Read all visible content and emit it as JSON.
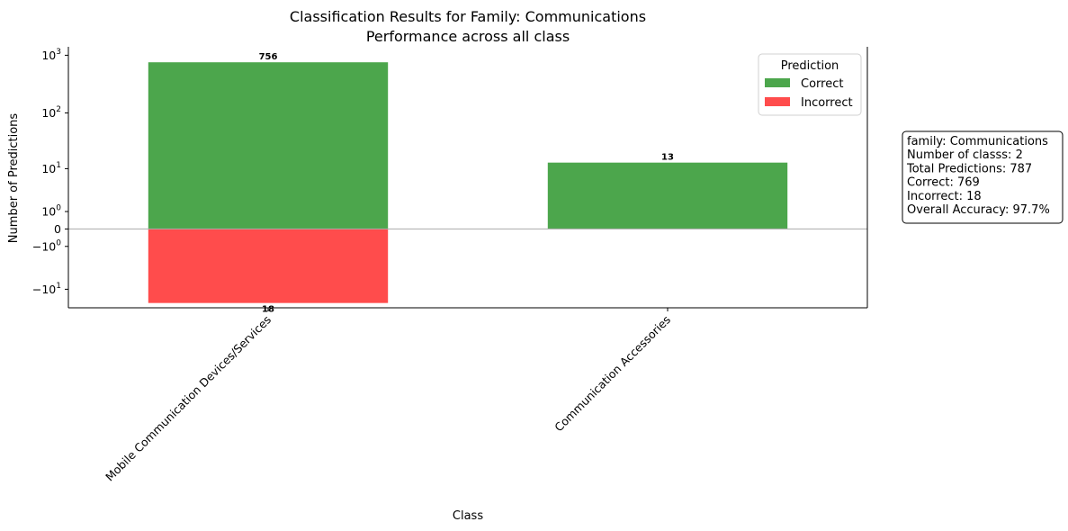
{
  "chart_data": {
    "type": "bar",
    "title": "Classification Results for Family: Communications",
    "subtitle": "Performance across all class",
    "xlabel": "Class",
    "ylabel": "Number of Predictions",
    "yscale": "symlog",
    "categories": [
      "Mobile Communication Devices/Services",
      "Communication Accessories"
    ],
    "series": [
      {
        "name": "Correct",
        "color": "#4ca64c",
        "values": [
          756,
          13
        ]
      },
      {
        "name": "Incorrect",
        "color": "#ff4c4c",
        "values": [
          -18,
          0
        ]
      }
    ],
    "bar_labels": {
      "correct": [
        "756",
        "13"
      ],
      "incorrect": [
        "18",
        ""
      ]
    },
    "yticks": [
      {
        "value": 1000,
        "base": "10",
        "exp": "3"
      },
      {
        "value": 100,
        "base": "10",
        "exp": "2"
      },
      {
        "value": 10,
        "base": "10",
        "exp": "1"
      },
      {
        "value": 1,
        "base": "10",
        "exp": "0"
      },
      {
        "value": 0,
        "base": "0",
        "exp": ""
      },
      {
        "value": -1,
        "base": "−10",
        "exp": "0"
      },
      {
        "value": -10,
        "base": "−10",
        "exp": "1"
      }
    ],
    "ylim": [
      -22,
      1400
    ],
    "legend": {
      "title": "Prediction",
      "placement": "top-right"
    },
    "zero_line": true,
    "grid": false
  },
  "info_box": {
    "lines": [
      "family: Communications",
      "Number of classs: 2",
      "Total Predictions: 787",
      "Correct: 769",
      "Incorrect: 18",
      "Overall Accuracy: 97.7%"
    ]
  }
}
